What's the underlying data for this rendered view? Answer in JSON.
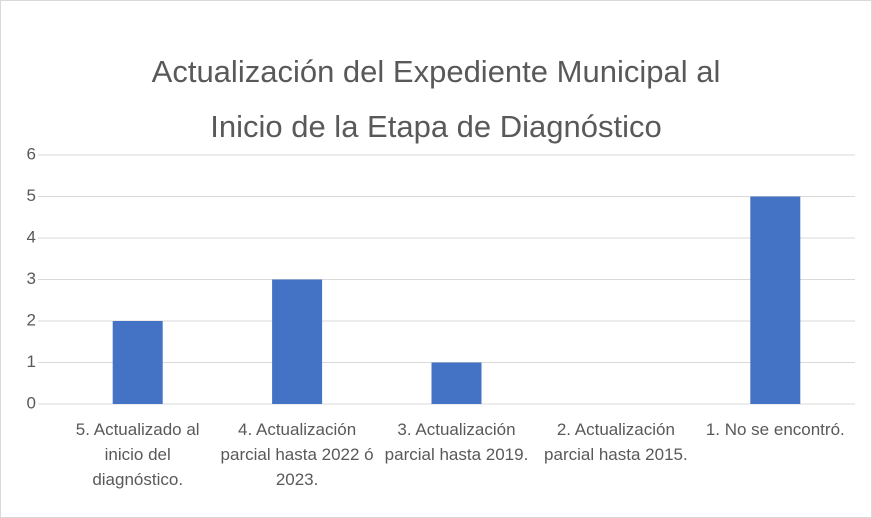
{
  "chart_data": {
    "type": "bar",
    "title": "Actualización del Expediente Municipal al Inicio de la Etapa de Diagnóstico",
    "categories": [
      "5. Actualizado al inicio del diagnóstico.",
      "4. Actualización parcial hasta 2022 ó 2023.",
      "3. Actualización parcial hasta 2019.",
      "2. Actualización parcial hasta 2015.",
      "1. No se encontró."
    ],
    "values": [
      2,
      3,
      1,
      0,
      5
    ],
    "color": "#4472c4",
    "ylim": [
      0,
      6
    ],
    "yticks": [
      0,
      1,
      2,
      3,
      4,
      5,
      6
    ],
    "grid": true
  }
}
